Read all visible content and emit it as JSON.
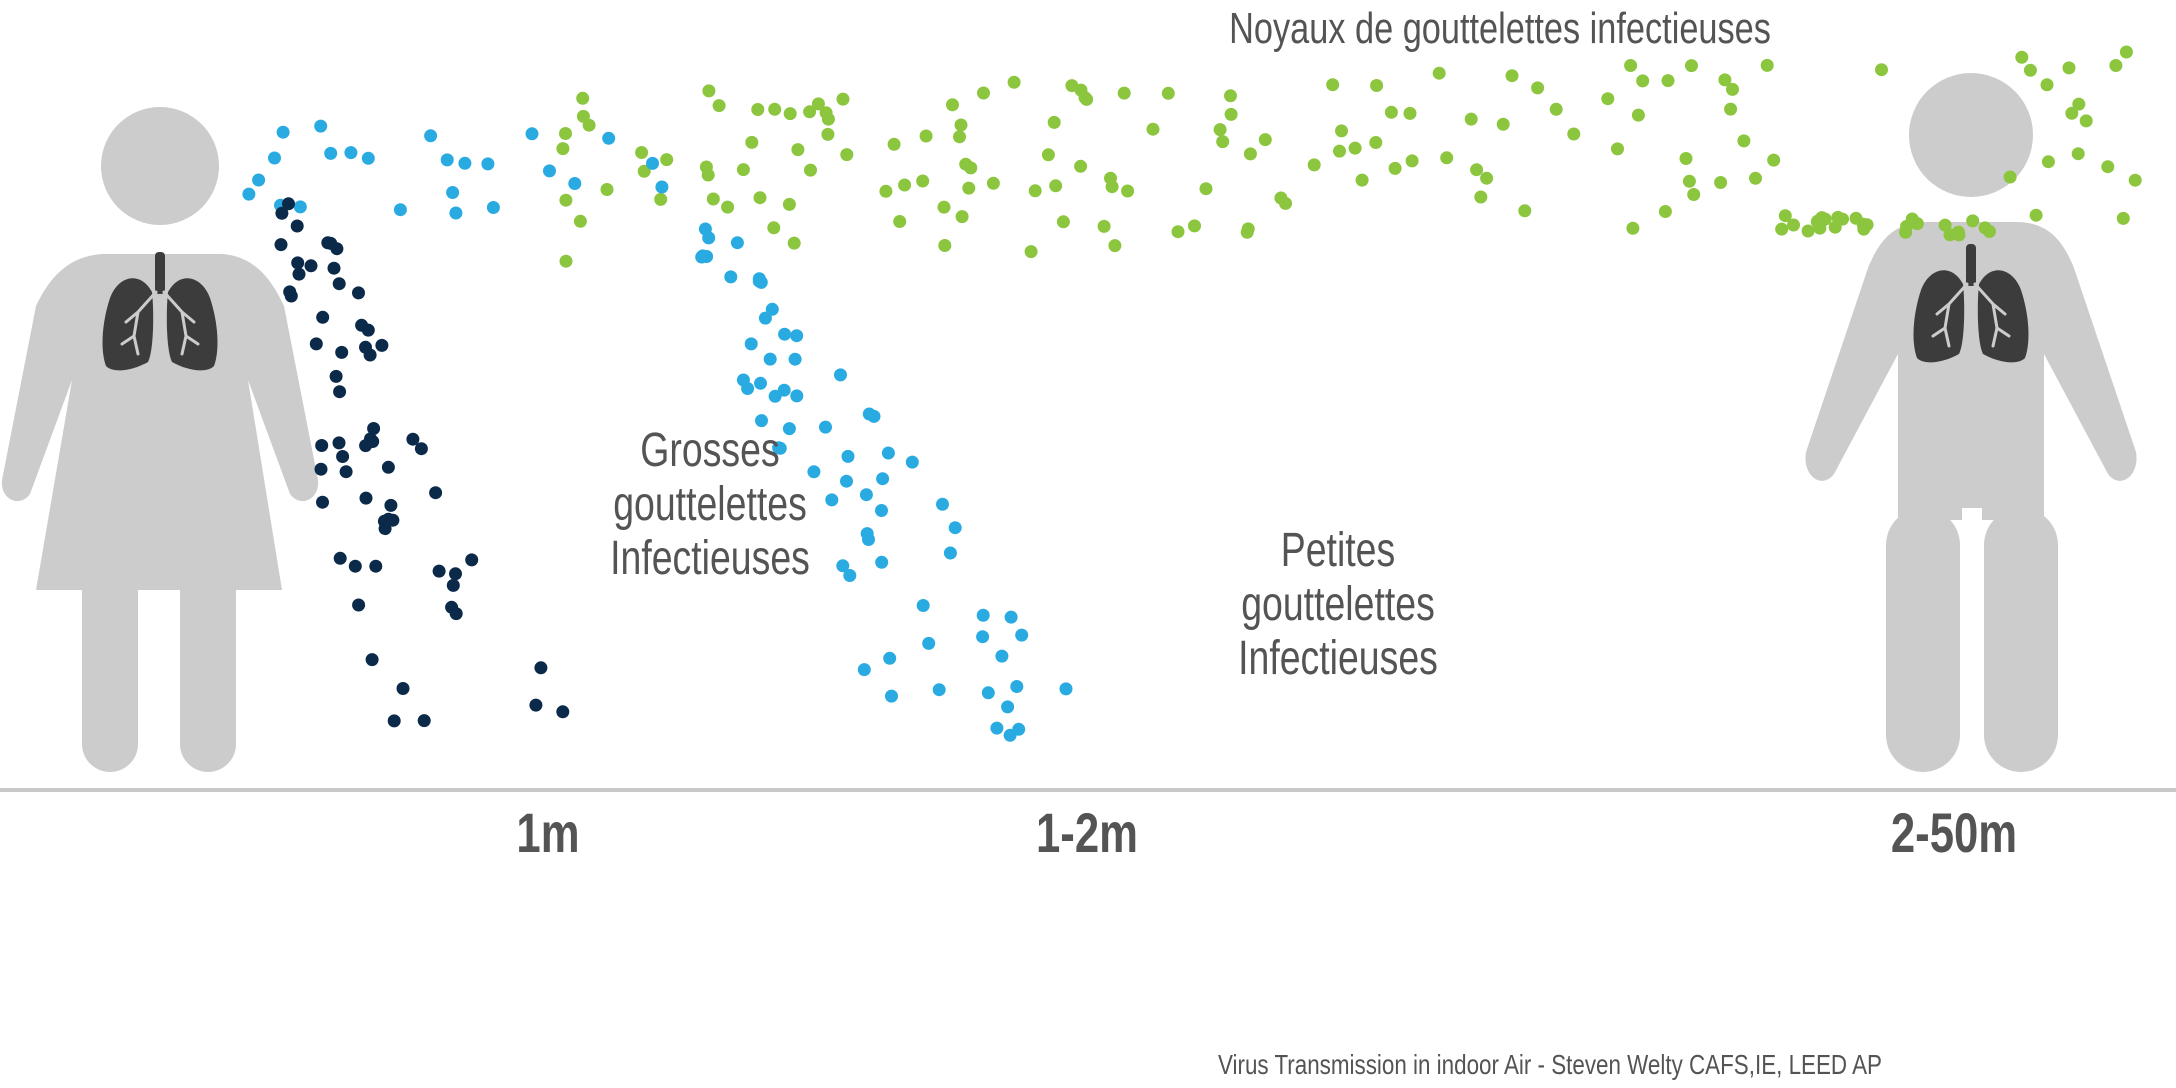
{
  "title": "Noyaux de gouttelettes infectieuses",
  "large_droplets": {
    "lines": [
      "Grosses",
      "gouttelettes",
      "Infectieuses"
    ]
  },
  "small_droplets": {
    "lines": [
      "Petites",
      "gouttelettes",
      "Infectieuses"
    ]
  },
  "distances": [
    "1m",
    "1-2m",
    "2-50m"
  ],
  "credit": "Virus Transmission in indoor Air - Steven Welty CAFS,IE, LEED AP",
  "colors": {
    "figure": "#cccccc",
    "lungs": "#3c3c3c",
    "large_droplets": "#0b2a4a",
    "small_droplets": "#29abe2",
    "aerosol": "#8cc63f",
    "ground": "#c8c8c8",
    "text": "#545454"
  }
}
